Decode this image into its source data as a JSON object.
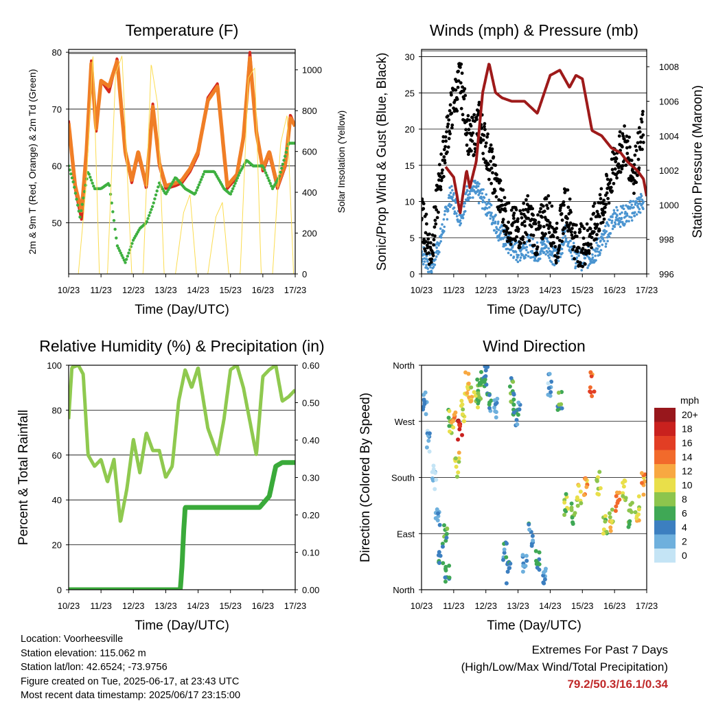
{
  "chart_data": [
    {
      "type": "line",
      "title": "Temperature (F)",
      "xlabel": "Time (Day/UTC)",
      "ylabel": "2m & 9m T (Red, Orange) & 2m Td (Green)",
      "ylabel_right": "Solar Insolation (Yellow)",
      "x_ticks": [
        "10/23",
        "11/23",
        "12/23",
        "13/23",
        "14/23",
        "15/23",
        "16/23",
        "17/23"
      ],
      "ylim": [
        41,
        80.5
      ],
      "y_ticks": [
        "50",
        "60",
        "70",
        "80"
      ],
      "y2lim": [
        0,
        1100
      ],
      "y2_ticks": [
        "0",
        "200",
        "400",
        "600",
        "800",
        "1000"
      ],
      "grid": "horizontal",
      "colors": {
        "t2m": "#d62a20",
        "t9m": "#f07e26",
        "td": "#3eb040",
        "solar": "#fbdc50"
      },
      "series": [
        {
          "key": "t2m",
          "x": [
            10.0,
            10.2,
            10.4,
            10.55,
            10.7,
            10.85,
            11.0,
            11.25,
            11.5,
            11.75,
            11.95,
            12.15,
            12.4,
            12.6,
            12.8,
            13.0,
            13.3,
            13.5,
            13.75,
            14.0,
            14.3,
            14.6,
            14.9,
            15.2,
            15.4,
            15.6,
            15.8,
            16.0,
            16.2,
            16.45,
            16.7,
            16.85,
            17.0
          ],
          "values": [
            68,
            56,
            50.5,
            62,
            78.5,
            66,
            75,
            73,
            79,
            62,
            57,
            62,
            56,
            71,
            60,
            56,
            56.5,
            57,
            59,
            62,
            72,
            74.5,
            56,
            58,
            65,
            80,
            66,
            59,
            62,
            56,
            60,
            69,
            67
          ]
        },
        {
          "key": "t9m",
          "x": [
            10.0,
            10.2,
            10.4,
            10.55,
            10.7,
            10.85,
            11.0,
            11.25,
            11.5,
            11.75,
            11.95,
            12.15,
            12.4,
            12.6,
            12.8,
            13.0,
            13.3,
            13.5,
            13.75,
            14.0,
            14.3,
            14.6,
            14.9,
            15.2,
            15.4,
            15.6,
            15.8,
            16.0,
            16.2,
            16.45,
            16.7,
            16.85,
            17.0
          ],
          "values": [
            67.5,
            56.5,
            52,
            62.5,
            78,
            66.5,
            75,
            74,
            78.5,
            62.5,
            57.5,
            62.5,
            56.5,
            70.5,
            60.5,
            56.5,
            57,
            57.5,
            59.5,
            62.5,
            71.5,
            74,
            56.5,
            58.5,
            65,
            79,
            66,
            59.5,
            62.5,
            56.5,
            60.5,
            68.5,
            67
          ]
        },
        {
          "key": "td",
          "x": [
            10.0,
            10.15,
            10.35,
            10.6,
            10.8,
            11.0,
            11.25,
            11.5,
            11.75,
            12.0,
            12.2,
            12.4,
            12.6,
            12.8,
            13.0,
            13.3,
            13.6,
            13.9,
            14.2,
            14.5,
            14.8,
            15.0,
            15.3,
            15.5,
            15.7,
            16.0,
            16.3,
            16.5,
            16.8,
            17.0
          ],
          "values": [
            60,
            57,
            51,
            59,
            56,
            56,
            57,
            46,
            43,
            47,
            49,
            50,
            53,
            57,
            55,
            58,
            56,
            55,
            59,
            59,
            56,
            55,
            59,
            61,
            60,
            60,
            56,
            58,
            64,
            64
          ]
        },
        {
          "key": "solar",
          "x": [
            10.0,
            10.3,
            10.55,
            10.75,
            10.95,
            11.2,
            11.45,
            11.65,
            11.95,
            12.3,
            12.55,
            12.75,
            12.95,
            13.3,
            13.55,
            13.75,
            13.95,
            14.3,
            14.55,
            14.75,
            14.95,
            15.3,
            15.55,
            15.75,
            15.95,
            16.3,
            16.55,
            16.75,
            16.95
          ],
          "values": [
            0,
            0,
            450,
            1080,
            0,
            0,
            980,
            1070,
            0,
            0,
            1030,
            830,
            0,
            0,
            300,
            390,
            0,
            0,
            280,
            350,
            0,
            0,
            960,
            1010,
            0,
            0,
            640,
            780,
            0
          ]
        }
      ]
    },
    {
      "type": "scatter",
      "title": "Winds (mph) & Pressure (mb)",
      "xlabel": "Time (Day/UTC)",
      "ylabel": "Sonic/Prop Wind & Gust (Blue, Black)",
      "ylabel_right": "Station Pressure (Maroon)",
      "x_ticks": [
        "10/23",
        "11/23",
        "12/23",
        "13/23",
        "14/23",
        "15/23",
        "16/23",
        "17/23"
      ],
      "ylim": [
        0,
        31
      ],
      "y_ticks": [
        "0",
        "5",
        "10",
        "15",
        "20",
        "25",
        "30"
      ],
      "y2lim": [
        996,
        1009
      ],
      "y2_ticks": [
        "996",
        "998",
        "1000",
        "1002",
        "1004",
        "1006",
        "1008"
      ],
      "grid": "horizontal",
      "colors": {
        "wind": "#4a94d0",
        "gust": "#000000",
        "pressure": "#9e1a1a"
      },
      "series": [
        {
          "key": "wind",
          "x": [
            10.0,
            10.3,
            10.6,
            10.9,
            11.2,
            11.5,
            11.8,
            12.1,
            12.4,
            12.7,
            13.0,
            13.3,
            13.6,
            13.9,
            14.2,
            14.5,
            14.8,
            15.1,
            15.4,
            15.7,
            16.0,
            16.3,
            16.6,
            16.9
          ],
          "values": [
            3,
            1,
            5,
            11,
            8,
            12,
            11,
            9,
            6,
            4,
            3,
            4,
            3,
            4,
            2,
            6,
            2,
            2,
            3,
            5,
            8,
            8,
            9,
            10
          ]
        },
        {
          "key": "gust",
          "x": [
            10.0,
            10.3,
            10.6,
            10.9,
            11.2,
            11.5,
            11.8,
            12.1,
            12.4,
            12.7,
            13.0,
            13.3,
            13.6,
            13.9,
            14.2,
            14.5,
            14.8,
            15.1,
            15.4,
            15.7,
            16.0,
            16.3,
            16.6,
            16.9
          ],
          "values": [
            8,
            3,
            14,
            22,
            27,
            18,
            21,
            16,
            11,
            7,
            6,
            8,
            5,
            9,
            4,
            10,
            4,
            4,
            7,
            10,
            15,
            18,
            14,
            20
          ]
        },
        {
          "key": "pressure",
          "x": [
            10.75,
            11.0,
            11.2,
            11.4,
            11.5,
            11.7,
            11.9,
            12.1,
            12.3,
            12.5,
            12.8,
            13.2,
            13.6,
            14.0,
            14.3,
            14.6,
            14.8,
            15.0,
            15.3,
            15.6,
            15.9,
            16.2,
            16.4,
            16.7,
            16.9,
            17.0
          ],
          "values": [
            1002.2,
            1001.6,
            999.5,
            1002,
            1001,
            1002.5,
            1006.5,
            1008.2,
            1006.5,
            1006.2,
            1006,
            1006,
            1005.3,
            1007.5,
            1007.8,
            1006.8,
            1007.5,
            1007.3,
            1004.3,
            1004,
            1003.3,
            1003,
            1002.5,
            1002,
            1001.5,
            1000.5
          ]
        }
      ]
    },
    {
      "type": "line",
      "title": "Relative Humidity (%) & Precipitation (in)",
      "xlabel": "Time (Day/UTC)",
      "ylabel": "Percent & Total Rainfall",
      "x_ticks": [
        "10/23",
        "11/23",
        "12/23",
        "13/23",
        "14/23",
        "15/23",
        "16/23",
        "17/23"
      ],
      "ylim": [
        0,
        100
      ],
      "y_ticks": [
        "0",
        "20",
        "40",
        "60",
        "80",
        "100"
      ],
      "y2lim": [
        0,
        0.6
      ],
      "y2_ticks": [
        "0.00",
        "0.10",
        "0.20",
        "0.30",
        "0.40",
        "0.50",
        "0.60"
      ],
      "grid": "horizontal",
      "colors": {
        "rh": "#8fc94f",
        "precip": "#3aaa3a"
      },
      "series": [
        {
          "key": "rh",
          "x": [
            10.0,
            10.1,
            10.3,
            10.45,
            10.6,
            10.8,
            11.0,
            11.2,
            11.4,
            11.6,
            11.8,
            12.0,
            12.2,
            12.4,
            12.6,
            12.8,
            13.0,
            13.2,
            13.4,
            13.6,
            13.8,
            14.0,
            14.3,
            14.6,
            14.8,
            15.0,
            15.2,
            15.4,
            15.6,
            15.8,
            16.0,
            16.2,
            16.4,
            16.6,
            16.8,
            17.0
          ],
          "values": [
            76,
            99,
            100,
            96,
            60,
            55,
            58,
            48,
            58,
            30,
            45,
            67,
            52,
            70,
            62,
            62,
            50,
            55,
            84,
            98,
            90,
            99,
            72,
            60,
            76,
            98,
            100,
            90,
            75,
            60,
            95,
            98,
            100,
            84,
            86,
            89
          ]
        },
        {
          "key": "precip",
          "x": [
            10.0,
            12.0,
            13.0,
            13.45,
            13.5,
            13.55,
            13.6,
            14.0,
            15.0,
            15.9,
            16.0,
            16.2,
            16.4,
            16.6,
            17.0
          ],
          "values": [
            0,
            0,
            0,
            0.0,
            0.06,
            0.15,
            0.22,
            0.22,
            0.22,
            0.22,
            0.23,
            0.25,
            0.33,
            0.34,
            0.34
          ]
        }
      ]
    },
    {
      "type": "scatter",
      "title": "Wind Direction",
      "xlabel": "Time (Day/UTC)",
      "ylabel": "Direction (Colored By Speed)",
      "x_ticks": [
        "10/23",
        "11/23",
        "12/23",
        "13/23",
        "14/23",
        "15/23",
        "16/23",
        "17/23"
      ],
      "ylim": [
        0,
        360
      ],
      "y_ticks": [
        "North",
        "East",
        "South",
        "West",
        "North"
      ],
      "grid": "horizontal",
      "legend": "right",
      "colorbar_title": "mph",
      "colorbar_labels": [
        "20+",
        "18",
        "16",
        "14",
        "12",
        "10",
        "8",
        "6",
        "4",
        "2",
        "0"
      ],
      "colorbar_colors": [
        "#98171c",
        "#c9211e",
        "#e23e24",
        "#f26a2b",
        "#f8a841",
        "#e9df4a",
        "#8dc54d",
        "#3fa855",
        "#3c7fc0",
        "#6eb0dd",
        "#c4e4f5"
      ],
      "series": [
        {
          "key": "dir",
          "x": [
            10.1,
            10.2,
            10.4,
            10.5,
            10.6,
            10.75,
            10.8,
            10.9,
            11.0,
            11.1,
            11.2,
            11.3,
            11.4,
            11.5,
            11.7,
            11.8,
            11.9,
            12.0,
            12.1,
            12.3,
            12.6,
            12.7,
            12.8,
            12.9,
            13.0,
            13.2,
            13.4,
            13.6,
            13.8,
            14.0,
            14.3,
            14.5,
            14.7,
            14.9,
            15.1,
            15.3,
            15.5,
            15.7,
            15.9,
            16.1,
            16.3,
            16.5,
            16.7,
            16.9
          ],
          "values": [
            300,
            240,
            180,
            120,
            60,
            90,
            30,
            270,
            280,
            200,
            260,
            290,
            330,
            320,
            300,
            320,
            330,
            340,
            300,
            290,
            60,
            30,
            320,
            300,
            280,
            40,
            90,
            50,
            20,
            330,
            300,
            140,
            120,
            150,
            160,
            330,
            170,
            100,
            110,
            140,
            160,
            120,
            130,
            170
          ],
          "speeds": [
            3,
            2,
            1,
            2,
            4,
            6,
            5,
            8,
            12,
            10,
            18,
            9,
            11,
            10,
            8,
            7,
            6,
            5,
            4,
            3,
            4,
            5,
            6,
            5,
            4,
            3,
            4,
            5,
            3,
            2,
            6,
            8,
            7,
            10,
            12,
            14,
            9,
            8,
            10,
            13,
            9,
            8,
            10,
            12
          ]
        }
      ]
    }
  ],
  "metadata_lines": {
    "location": "Location: Voorheesville",
    "elevation": "Station elevation: 115.062 m",
    "latlon": "Station lat/lon: 42.6524; -73.9756",
    "created": "Figure created on Tue, 2025-06-17, at 23:43 UTC",
    "latest": "Most recent data timestamp: 2025/06/17 23:15:00"
  },
  "extremes": {
    "heading": "Extremes For Past 7 Days",
    "subheading": "(High/Low/Max Wind/Total Precipitation)",
    "values": "79.2/50.3/16.1/0.34"
  }
}
